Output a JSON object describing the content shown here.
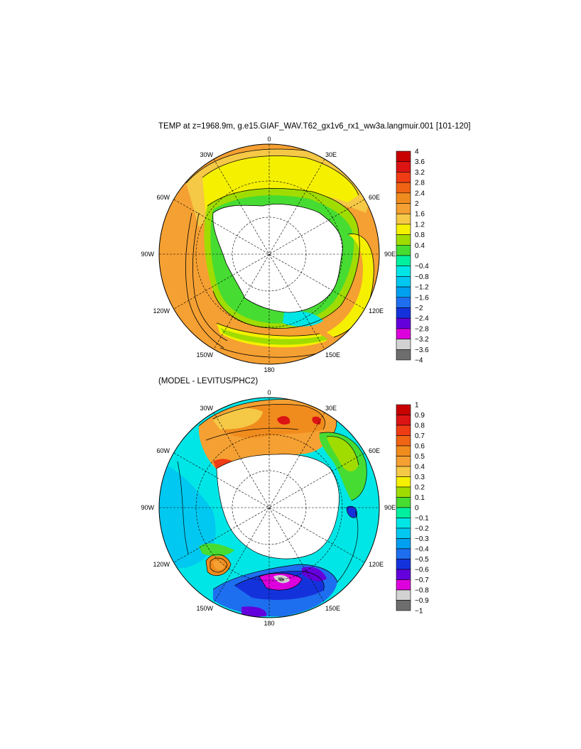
{
  "titles": {
    "main": "TEMP at z=1968.9m, g.e15.GIAF_WAV.T62_gx1v6_rx1_ww3a.langmuir.001 [101-120]",
    "difference": "(MODEL - LEVITUS/PHC2)"
  },
  "map_labels": {
    "top": "0",
    "bottom": "180",
    "left": "90W",
    "right": "90E",
    "upper_left": "30W",
    "upper_right": "30E",
    "left_upper": "60W",
    "right_upper": "60E",
    "left_lower": "120W",
    "right_lower": "120E",
    "lower_left": "150W",
    "lower_right": "150E"
  },
  "colorbars": {
    "top": {
      "labels": [
        "4",
        "3.6",
        "3.2",
        "2.8",
        "2.4",
        "2",
        "1.6",
        "1.2",
        "0.8",
        "0.4",
        "0",
        "−0.4",
        "−0.8",
        "−1.2",
        "−1.6",
        "−2",
        "−2.4",
        "−2.8",
        "−3.2",
        "−3.6",
        "−4"
      ],
      "colors": [
        "#c80000",
        "#dc1414",
        "#f03c14",
        "#f06414",
        "#f08c1e",
        "#f5a032",
        "#f5c846",
        "#f5f000",
        "#a0dc00",
        "#46dc32",
        "#00f0a0",
        "#00e6e6",
        "#00c8f0",
        "#00a0f0",
        "#1e6ef0",
        "#1432dc",
        "#6400dc",
        "#dc00dc",
        "#d2d2d2",
        "#6e6e6e"
      ]
    },
    "bottom": {
      "labels": [
        "1",
        "0.9",
        "0.8",
        "0.7",
        "0.6",
        "0.5",
        "0.4",
        "0.3",
        "0.2",
        "0.1",
        "0",
        "−0.1",
        "−0.2",
        "−0.3",
        "−0.4",
        "−0.5",
        "−0.6",
        "−0.7",
        "−0.8",
        "−0.9",
        "−1"
      ],
      "colors": [
        "#c80000",
        "#dc1414",
        "#f03c14",
        "#f06414",
        "#f08c1e",
        "#f5a032",
        "#f5c846",
        "#f5f000",
        "#a0dc00",
        "#46dc32",
        "#00f0a0",
        "#00e6e6",
        "#00c8f0",
        "#00a0f0",
        "#1e6ef0",
        "#1432dc",
        "#6400dc",
        "#dc00dc",
        "#d2d2d2",
        "#6e6e6e"
      ]
    }
  }
}
